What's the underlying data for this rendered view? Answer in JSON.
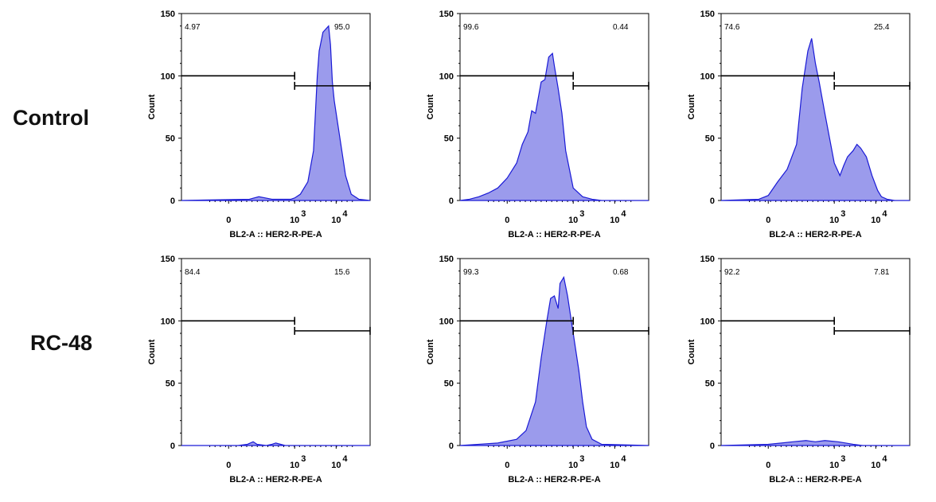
{
  "row_labels": [
    "Control",
    "RC-48"
  ],
  "chart_data": [
    {
      "type": "area",
      "row": 0,
      "col": 0,
      "xlabel": "BL2-A :: HER2-R-PE-A",
      "ylabel": "Count",
      "ylim": [
        0,
        150
      ],
      "yticks": [
        "0",
        "50",
        "100",
        "150"
      ],
      "xticks": [
        "0",
        "10",
        "10"
      ],
      "xtick_exps": [
        "",
        "3",
        "4"
      ],
      "gates": [
        {
          "label": "4.97",
          "y": 100
        },
        {
          "label": "95.0",
          "y": 92
        }
      ],
      "series": [
        {
          "x": [
            0.0,
            0.36,
            0.41,
            0.48,
            0.58,
            0.6,
            0.63,
            0.67,
            0.7,
            0.72,
            0.73,
            0.75,
            0.78,
            0.79,
            0.8,
            0.81,
            0.83,
            0.85,
            0.87,
            0.9,
            0.94,
            1.0
          ],
          "y": [
            0,
            1,
            3,
            1,
            1,
            2,
            5,
            15,
            40,
            100,
            120,
            135,
            140,
            125,
            95,
            80,
            60,
            40,
            20,
            5,
            1,
            0
          ]
        }
      ]
    },
    {
      "type": "area",
      "row": 0,
      "col": 1,
      "xlabel": "BL2-A :: HER2-R-PE-A",
      "ylabel": "Count",
      "ylim": [
        0,
        150
      ],
      "yticks": [
        "0",
        "50",
        "100",
        "150"
      ],
      "xticks": [
        "0",
        "10",
        "10"
      ],
      "xtick_exps": [
        "",
        "3",
        "4"
      ],
      "gates": [
        {
          "label": "99.6",
          "y": 100
        },
        {
          "label": "0.44",
          "y": 92
        }
      ],
      "series": [
        {
          "x": [
            0.0,
            0.05,
            0.1,
            0.15,
            0.2,
            0.25,
            0.3,
            0.33,
            0.36,
            0.38,
            0.4,
            0.43,
            0.45,
            0.47,
            0.49,
            0.5,
            0.52,
            0.54,
            0.56,
            0.58,
            0.6,
            0.65,
            0.7,
            0.75,
            1.0
          ],
          "y": [
            0,
            1,
            3,
            6,
            10,
            18,
            30,
            45,
            55,
            72,
            70,
            95,
            97,
            115,
            118,
            108,
            90,
            70,
            40,
            25,
            10,
            3,
            1,
            0,
            0
          ]
        }
      ]
    },
    {
      "type": "area",
      "row": 0,
      "col": 2,
      "xlabel": "BL2-A :: HER2-R-PE-A",
      "ylabel": "Count",
      "ylim": [
        0,
        150
      ],
      "yticks": [
        "0",
        "50",
        "100",
        "150"
      ],
      "xticks": [
        "0",
        "10",
        "10"
      ],
      "xtick_exps": [
        "",
        "3",
        "4"
      ],
      "gates": [
        {
          "label": "74.6",
          "y": 100
        },
        {
          "label": "25.4",
          "y": 92
        }
      ],
      "series": [
        {
          "x": [
            0.0,
            0.2,
            0.25,
            0.3,
            0.35,
            0.4,
            0.43,
            0.46,
            0.48,
            0.5,
            0.52,
            0.55,
            0.6,
            0.63,
            0.65,
            0.67,
            0.7,
            0.72,
            0.74,
            0.77,
            0.8,
            0.83,
            0.85,
            0.88,
            0.92,
            1.0
          ],
          "y": [
            0,
            1,
            4,
            15,
            25,
            45,
            90,
            120,
            130,
            110,
            95,
            70,
            30,
            20,
            28,
            35,
            40,
            45,
            42,
            35,
            20,
            8,
            3,
            1,
            0,
            0
          ]
        }
      ]
    },
    {
      "type": "area",
      "row": 1,
      "col": 0,
      "xlabel": "BL2-A :: HER2-R-PE-A",
      "ylabel": "Count",
      "ylim": [
        0,
        150
      ],
      "yticks": [
        "0",
        "50",
        "100",
        "150"
      ],
      "xticks": [
        "0",
        "10",
        "10"
      ],
      "xtick_exps": [
        "",
        "3",
        "4"
      ],
      "gates": [
        {
          "label": "84.4",
          "y": 100
        },
        {
          "label": "15.6",
          "y": 92
        }
      ],
      "series": [
        {
          "x": [
            0.0,
            0.3,
            0.35,
            0.38,
            0.4,
            0.45,
            0.48,
            0.5,
            0.55,
            1.0
          ],
          "y": [
            0,
            0,
            1,
            3,
            1,
            0,
            1,
            2,
            0,
            0
          ]
        }
      ]
    },
    {
      "type": "area",
      "row": 1,
      "col": 1,
      "xlabel": "BL2-A :: HER2-R-PE-A",
      "ylabel": "Count",
      "ylim": [
        0,
        150
      ],
      "yticks": [
        "0",
        "50",
        "100",
        "150"
      ],
      "xticks": [
        "0",
        "10",
        "10"
      ],
      "xtick_exps": [
        "",
        "3",
        "4"
      ],
      "gates": [
        {
          "label": "99.3",
          "y": 100
        },
        {
          "label": "0.68",
          "y": 92
        }
      ],
      "series": [
        {
          "x": [
            0.0,
            0.1,
            0.2,
            0.3,
            0.35,
            0.4,
            0.43,
            0.46,
            0.48,
            0.5,
            0.52,
            0.53,
            0.55,
            0.57,
            0.6,
            0.63,
            0.65,
            0.67,
            0.7,
            0.75,
            1.0
          ],
          "y": [
            0,
            1,
            2,
            5,
            12,
            35,
            70,
            100,
            118,
            120,
            110,
            130,
            135,
            120,
            90,
            60,
            35,
            15,
            5,
            1,
            0
          ]
        }
      ]
    },
    {
      "type": "area",
      "row": 1,
      "col": 2,
      "xlabel": "BL2-A :: HER2-R-PE-A",
      "ylabel": "Count",
      "ylim": [
        0,
        150
      ],
      "yticks": [
        "0",
        "50",
        "100",
        "150"
      ],
      "xticks": [
        "0",
        "10",
        "10"
      ],
      "xtick_exps": [
        "",
        "3",
        "4"
      ],
      "gates": [
        {
          "label": "92.2",
          "y": 100
        },
        {
          "label": "7.81",
          "y": 92
        }
      ],
      "series": [
        {
          "x": [
            0.0,
            0.25,
            0.32,
            0.38,
            0.45,
            0.5,
            0.55,
            0.62,
            0.7,
            0.75,
            1.0
          ],
          "y": [
            0,
            1,
            2,
            3,
            4,
            3,
            4,
            3,
            1,
            0,
            0
          ]
        }
      ]
    }
  ]
}
